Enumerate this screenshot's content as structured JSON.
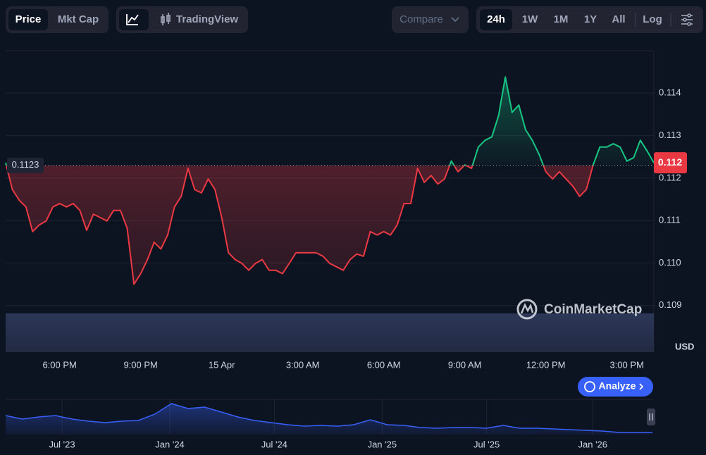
{
  "ui": {
    "tabs": [
      "Price",
      "Mkt Cap"
    ],
    "tradingview": "TradingView",
    "compare": "Compare",
    "ranges": [
      "24h",
      "1W",
      "1M",
      "1Y",
      "All"
    ],
    "log": "Log",
    "watermark": "CoinMarketCap",
    "analyze": "Analyze"
  },
  "chart_data": [
    {
      "type": "line",
      "xlim": [
        0,
        96
      ],
      "xticks": [
        {
          "value": 8,
          "label": "6:00 PM"
        },
        {
          "value": 20,
          "label": "9:00 PM"
        },
        {
          "value": 32,
          "label": "15 Apr"
        },
        {
          "value": 44,
          "label": "3:00 AM"
        },
        {
          "value": 56,
          "label": "6:00 AM"
        },
        {
          "value": 68,
          "label": "9:00 AM"
        },
        {
          "value": 80,
          "label": "12:00 PM"
        },
        {
          "value": 92,
          "label": "3:00 PM"
        }
      ],
      "values": [
        0.11236,
        0.11173,
        0.11148,
        0.11132,
        0.11074,
        0.1109,
        0.11099,
        0.11132,
        0.1114,
        0.11132,
        0.1114,
        0.11124,
        0.11077,
        0.11115,
        0.11107,
        0.11099,
        0.11124,
        0.11124,
        0.11082,
        0.1095,
        0.10975,
        0.11008,
        0.11049,
        0.11033,
        0.11066,
        0.11132,
        0.11157,
        0.11223,
        0.11173,
        0.11165,
        0.11198,
        0.11173,
        0.11107,
        0.11024,
        0.11008,
        0.10999,
        0.10983,
        0.10999,
        0.11008,
        0.10983,
        0.10983,
        0.10975,
        0.10999,
        0.11024,
        0.11024,
        0.11024,
        0.11024,
        0.11016,
        0.10999,
        0.10991,
        0.10983,
        0.11008,
        0.11021,
        0.11016,
        0.11074,
        0.11066,
        0.11074,
        0.11066,
        0.1109,
        0.1114,
        0.1114,
        0.11223,
        0.1119,
        0.11206,
        0.11186,
        0.11198,
        0.1124,
        0.11215,
        0.11231,
        0.11223,
        0.11273,
        0.11289,
        0.11297,
        0.11347,
        0.11438,
        0.11355,
        0.11372,
        0.11314,
        0.11289,
        0.11256,
        0.11215,
        0.11198,
        0.11215,
        0.11198,
        0.11181,
        0.11157,
        0.11173,
        0.11231,
        0.11273,
        0.11273,
        0.11281,
        0.11273,
        0.1124,
        0.11248,
        0.11289,
        0.11264,
        0.11236
      ],
      "ylim": [
        0.1079,
        0.115
      ],
      "yticks": [
        0.109,
        {
          "value": 0.11,
          "label": "0.110"
        },
        0.111,
        0.112,
        0.113,
        0.114
      ],
      "ylabel": "USD",
      "reference": 0.1123,
      "current_price": {
        "value": 0.11236,
        "label": "0.112"
      },
      "colors": {
        "up": "#16c784",
        "down": "#ea3943"
      },
      "grid": true
    },
    {
      "type": "area",
      "xlim": [
        0,
        39
      ],
      "xticks": [
        {
          "value": 3.4,
          "label": "Jul '23"
        },
        {
          "value": 9.9,
          "label": "Jan '24"
        },
        {
          "value": 16.2,
          "label": "Jul '24"
        },
        {
          "value": 22.7,
          "label": "Jan '25"
        },
        {
          "value": 29.0,
          "label": "Jul '25"
        },
        {
          "value": 35.4,
          "label": "Jan '26"
        }
      ],
      "values": [
        54,
        44,
        50,
        54,
        44,
        38,
        34,
        38,
        40,
        58,
        88,
        74,
        78,
        64,
        50,
        40,
        34,
        28,
        24,
        26,
        24,
        28,
        42,
        28,
        26,
        20,
        18,
        20,
        20,
        18,
        26,
        18,
        18,
        16,
        14,
        12,
        10,
        6,
        6,
        6
      ],
      "ylim": [
        0,
        100
      ],
      "color": "#3861fb",
      "grid": true
    }
  ]
}
